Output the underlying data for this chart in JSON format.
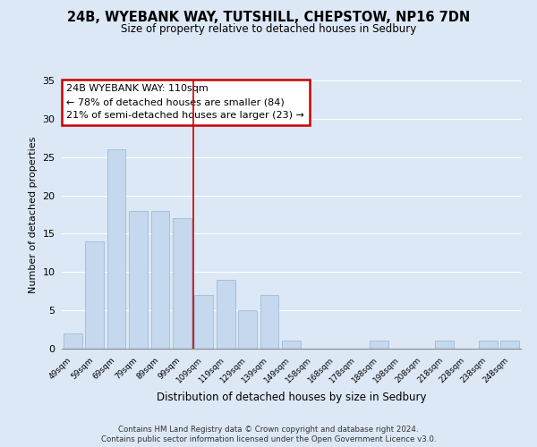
{
  "title": "24B, WYEBANK WAY, TUTSHILL, CHEPSTOW, NP16 7DN",
  "subtitle": "Size of property relative to detached houses in Sedbury",
  "xlabel": "Distribution of detached houses by size in Sedbury",
  "ylabel": "Number of detached properties",
  "bins": [
    "49sqm",
    "59sqm",
    "69sqm",
    "79sqm",
    "89sqm",
    "99sqm",
    "109sqm",
    "119sqm",
    "129sqm",
    "139sqm",
    "149sqm",
    "158sqm",
    "168sqm",
    "178sqm",
    "188sqm",
    "198sqm",
    "208sqm",
    "218sqm",
    "228sqm",
    "238sqm",
    "248sqm"
  ],
  "values": [
    2,
    14,
    26,
    18,
    18,
    17,
    7,
    9,
    5,
    7,
    1,
    0,
    0,
    0,
    1,
    0,
    0,
    1,
    0,
    1,
    1
  ],
  "bar_color": "#c5d8ed",
  "bar_edge_color": "#a0bcd8",
  "annotation_title": "24B WYEBANK WAY: 110sqm",
  "annotation_line1": "← 78% of detached houses are smaller (84)",
  "annotation_line2": "21% of semi-detached houses are larger (23) →",
  "annotation_border_color": "#cc0000",
  "vline_color": "#cc0000",
  "vline_x_index": 6,
  "ylim": [
    0,
    35
  ],
  "yticks": [
    0,
    5,
    10,
    15,
    20,
    25,
    30,
    35
  ],
  "bg_color": "#dce8f5",
  "plot_bg_color": "#dce8f5",
  "grid_color": "#ffffff",
  "footnote1": "Contains HM Land Registry data © Crown copyright and database right 2024.",
  "footnote2": "Contains public sector information licensed under the Open Government Licence v3.0."
}
